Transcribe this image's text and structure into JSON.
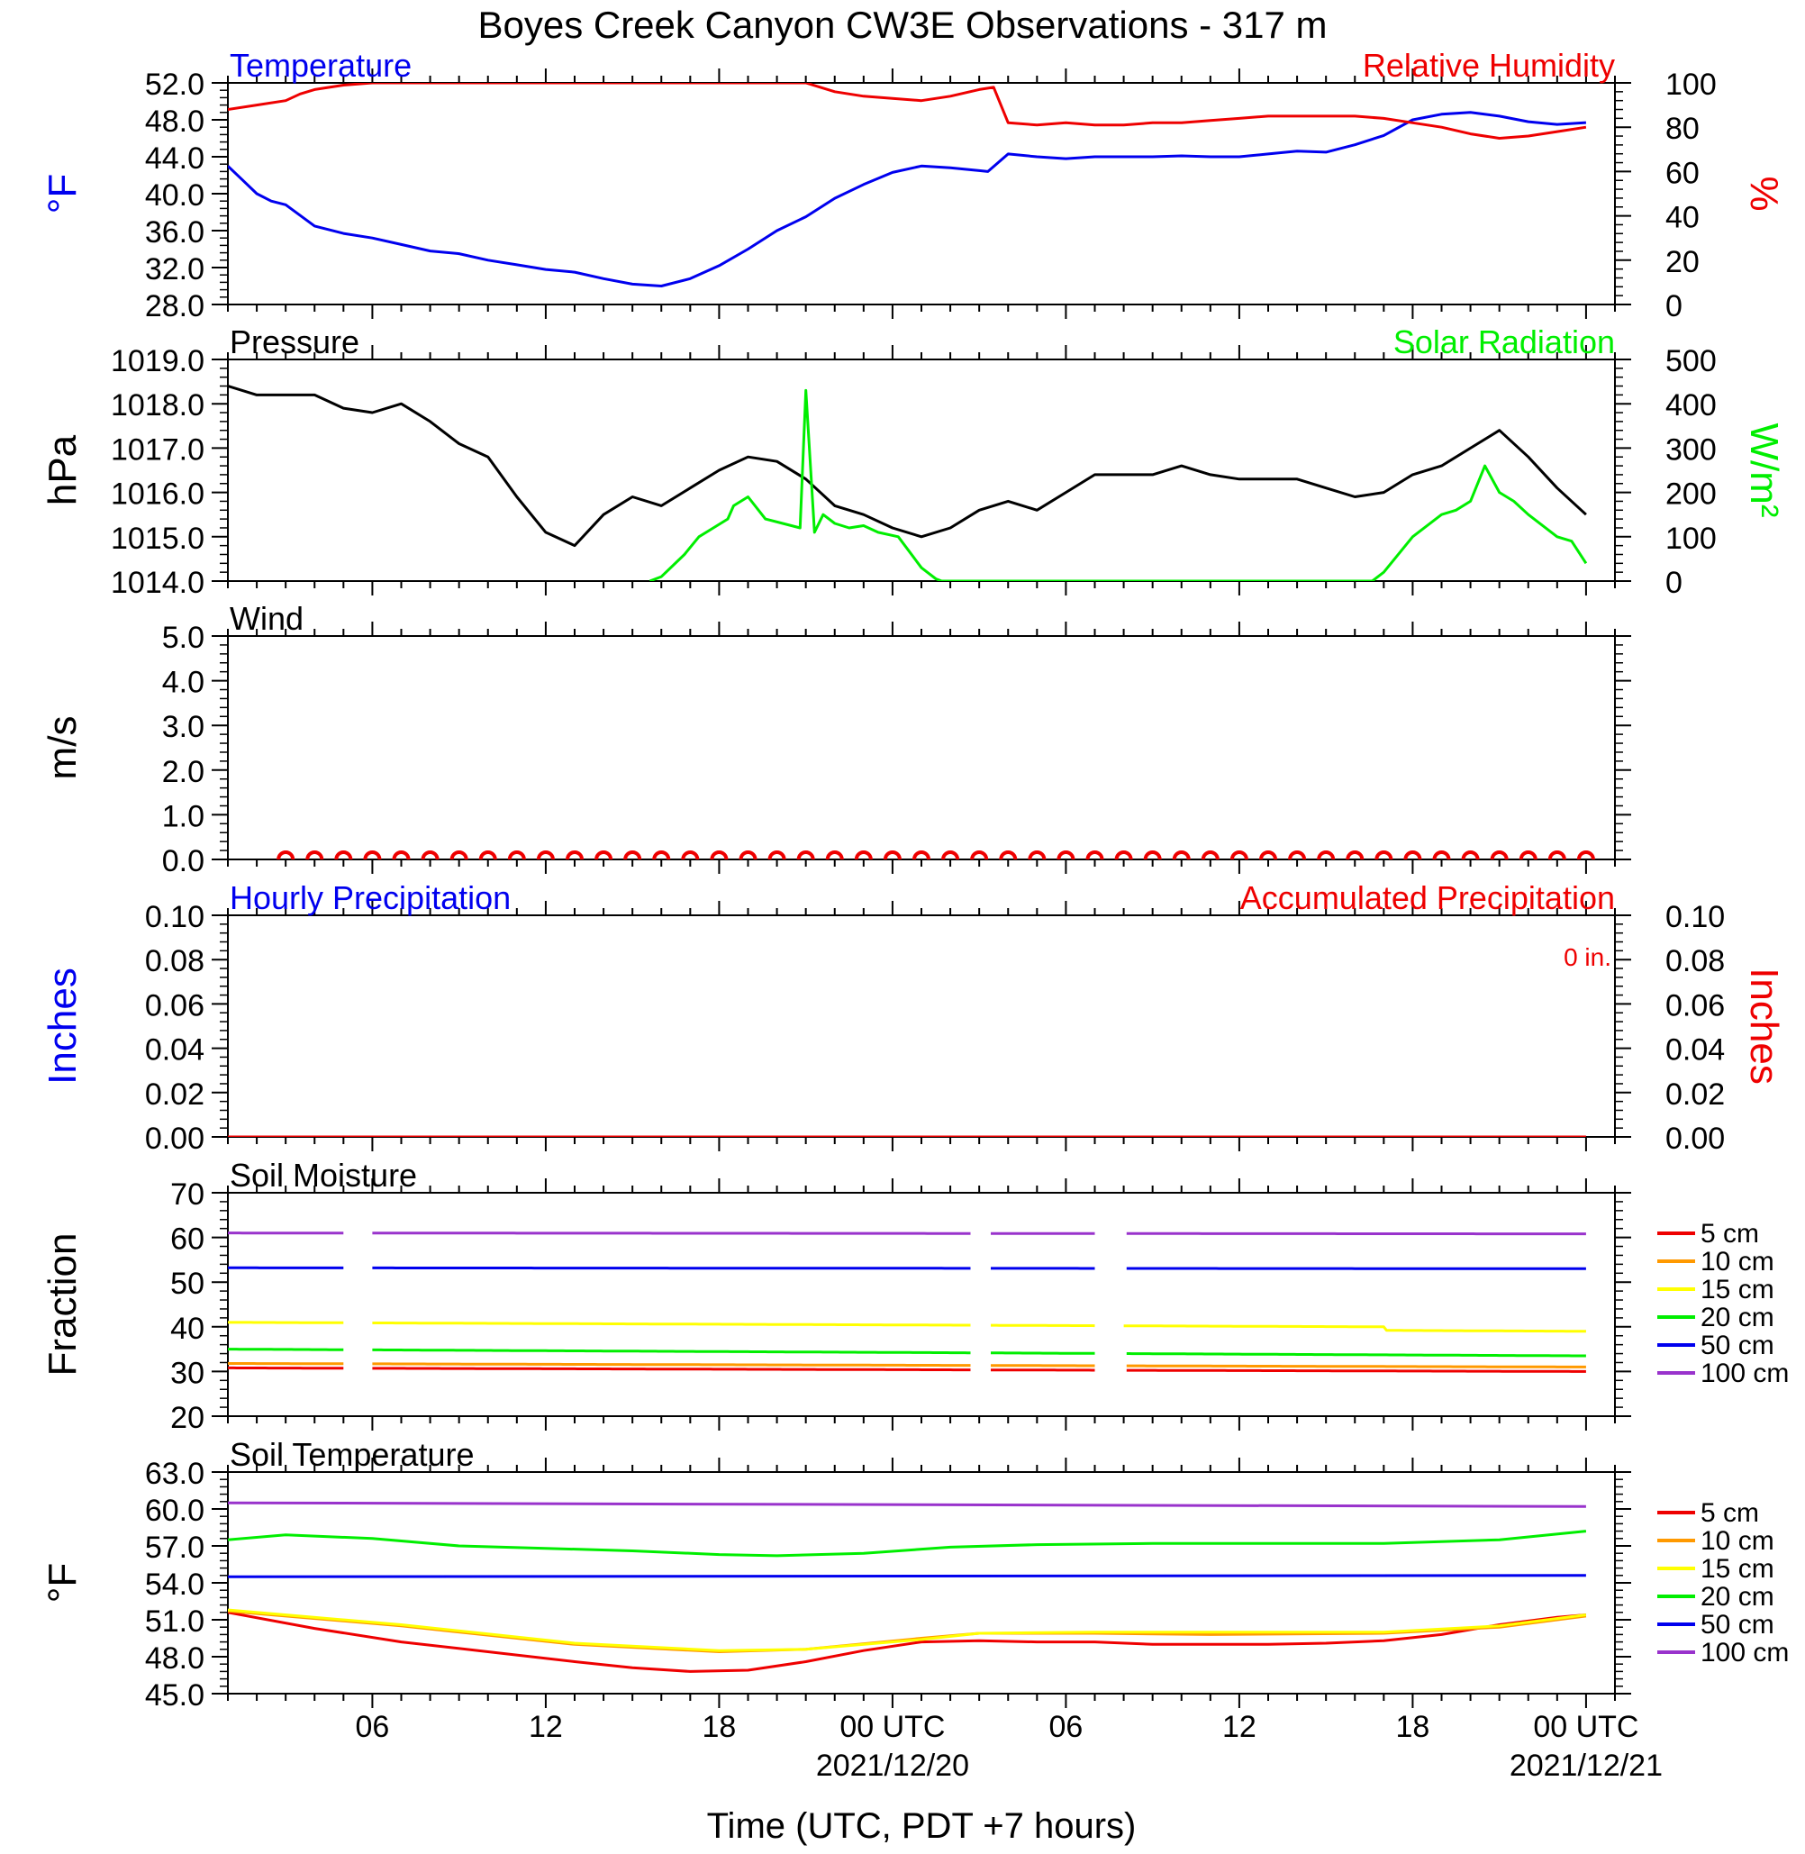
{
  "title": "Boyes Creek Canyon CW3E Observations - 317 m",
  "x_axis": {
    "label": "Time (UTC, PDT +7 hours)",
    "hours_range": [
      0,
      48
    ],
    "tick_labels": [
      {
        "hour": 5,
        "text": "06"
      },
      {
        "hour": 11,
        "text": "12"
      },
      {
        "hour": 17,
        "text": "18"
      },
      {
        "hour": 23,
        "text": "00 UTC",
        "date": "2021/12/20"
      },
      {
        "hour": 29,
        "text": "06"
      },
      {
        "hour": 35,
        "text": "12"
      },
      {
        "hour": 41,
        "text": "18"
      },
      {
        "hour": 47,
        "text": "00 UTC",
        "date": "2021/12/21"
      }
    ]
  },
  "chart_data": [
    {
      "type": "line",
      "id": "temp_rh",
      "left_title": "Temperature",
      "right_title": "Relative Humidity",
      "ylabel_left": "°F",
      "ylabel_right": "%",
      "ylim_left": [
        28,
        52
      ],
      "ylim_right": [
        0,
        100
      ],
      "yticks_left": [
        "28.0",
        "32.0",
        "36.0",
        "40.0",
        "44.0",
        "48.0",
        "52.0"
      ],
      "yticks_right": [
        "0",
        "20",
        "40",
        "60",
        "80",
        "100"
      ],
      "series": [
        {
          "name": "Temperature",
          "axis": "left",
          "color": "#0000ee",
          "x": [
            0,
            0.5,
            1,
            1.5,
            2,
            3,
            4,
            5,
            6,
            7,
            8,
            9,
            10,
            11,
            12,
            13,
            14,
            15,
            16,
            17,
            18,
            19,
            20,
            21,
            22,
            23,
            24,
            25,
            26,
            26.3,
            27,
            28,
            29,
            30,
            31,
            32,
            33,
            34,
            35,
            36,
            37,
            38,
            39,
            40,
            41,
            42,
            43,
            44,
            45,
            46,
            47
          ],
          "y": [
            43,
            41.5,
            40,
            39.2,
            38.8,
            36.5,
            35.7,
            35.2,
            34.5,
            33.8,
            33.5,
            32.8,
            32.3,
            31.8,
            31.5,
            30.8,
            30.2,
            30,
            30.8,
            32.2,
            34,
            36,
            37.5,
            39.5,
            41,
            42.3,
            43,
            42.8,
            42.5,
            42.4,
            44.3,
            44,
            43.8,
            44,
            44,
            44,
            44.1,
            44,
            44,
            44.3,
            44.6,
            44.5,
            45.3,
            46.3,
            48,
            48.6,
            48.8,
            48.4,
            47.8,
            47.5,
            47.7
          ]
        },
        {
          "name": "Relative Humidity",
          "axis": "right",
          "color": "#ee0000",
          "x": [
            0,
            1,
            2,
            2.5,
            3,
            4,
            5,
            10,
            15,
            19,
            20,
            21,
            22,
            23,
            24,
            25,
            26,
            26.5,
            27,
            28,
            29,
            30,
            31,
            32,
            33,
            34,
            35,
            36,
            37,
            38,
            39,
            40,
            41,
            42,
            43,
            44,
            45,
            46,
            47
          ],
          "y": [
            88,
            90,
            92,
            95,
            97,
            99,
            100,
            100,
            100,
            100,
            100,
            96,
            94,
            93,
            92,
            94,
            97,
            98,
            82,
            81,
            82,
            81,
            81,
            82,
            82,
            83,
            84,
            85,
            85,
            85,
            85,
            84,
            82,
            80,
            77,
            75,
            76,
            78,
            80
          ]
        }
      ]
    },
    {
      "type": "line",
      "id": "pressure_solar",
      "left_title": "Pressure",
      "right_title": "Solar Radiation",
      "ylabel_left": "hPa",
      "ylabel_right": "W/m²",
      "ylim_left": [
        1014,
        1019
      ],
      "ylim_right": [
        0,
        500
      ],
      "yticks_left": [
        "1014.0",
        "1015.0",
        "1016.0",
        "1017.0",
        "1018.0",
        "1019.0"
      ],
      "yticks_right": [
        "0",
        "100",
        "200",
        "300",
        "400",
        "500"
      ],
      "series": [
        {
          "name": "Pressure",
          "axis": "left",
          "color": "#000000",
          "x": [
            0,
            1,
            2,
            3,
            4,
            5,
            6,
            7,
            8,
            9,
            10,
            11,
            12,
            13,
            14,
            15,
            16,
            17,
            18,
            19,
            20,
            21,
            22,
            23,
            24,
            25,
            26,
            27,
            28,
            29,
            30,
            31,
            32,
            33,
            34,
            35,
            36,
            37,
            38,
            39,
            40,
            41,
            42,
            43,
            44,
            45,
            46,
            47
          ],
          "y": [
            1018.4,
            1018.2,
            1018.2,
            1018.2,
            1017.9,
            1017.8,
            1018,
            1017.6,
            1017.1,
            1016.8,
            1015.9,
            1015.1,
            1014.8,
            1015.5,
            1015.9,
            1015.7,
            1016.1,
            1016.5,
            1016.8,
            1016.7,
            1016.3,
            1015.7,
            1015.5,
            1015.2,
            1015,
            1015.2,
            1015.6,
            1015.8,
            1015.6,
            1016,
            1016.4,
            1016.4,
            1016.4,
            1016.6,
            1016.4,
            1016.3,
            1016.3,
            1016.3,
            1016.1,
            1015.9,
            1016,
            1016.4,
            1016.6,
            1017,
            1017.4,
            1016.8,
            1016.1,
            1015.5
          ]
        },
        {
          "name": "Solar Radiation",
          "axis": "right",
          "color": "#00ee00",
          "x": [
            14.6,
            15,
            15.8,
            16.3,
            16.8,
            17.3,
            17.5,
            18,
            18.6,
            19.2,
            19.8,
            20,
            20.3,
            20.6,
            21,
            21.5,
            22,
            22.5,
            23.2,
            24,
            24.5,
            24.7,
            39.6,
            40,
            41,
            42,
            42.5,
            43,
            43.5,
            44,
            44.5,
            45,
            46,
            46.5,
            47
          ],
          "y": [
            0,
            10,
            60,
            100,
            120,
            140,
            170,
            190,
            140,
            130,
            120,
            430,
            110,
            150,
            130,
            120,
            125,
            110,
            100,
            30,
            5,
            0,
            0,
            20,
            100,
            150,
            160,
            180,
            260,
            200,
            180,
            150,
            100,
            90,
            40
          ]
        }
      ]
    },
    {
      "type": "scatter",
      "id": "wind",
      "left_title": "Wind",
      "ylabel_left": "m/s",
      "ylim_left": [
        0,
        5
      ],
      "yticks_left": [
        "0.0",
        "1.0",
        "2.0",
        "3.0",
        "4.0",
        "5.0"
      ],
      "series": [
        {
          "name": "Wind",
          "axis": "left",
          "color": "#ee0000",
          "x": [
            2,
            3,
            4,
            5,
            6,
            7,
            8,
            9,
            10,
            11,
            12,
            13,
            14,
            15,
            16,
            17,
            18,
            19,
            20,
            21,
            22,
            23,
            24,
            25,
            26,
            27,
            28,
            29,
            30,
            31,
            32,
            33,
            34,
            35,
            36,
            37,
            38,
            39,
            40,
            41,
            42,
            43,
            44,
            45,
            46,
            47
          ],
          "y": [
            0,
            0,
            0,
            0,
            0,
            0,
            0,
            0,
            0,
            0,
            0,
            0,
            0,
            0,
            0,
            0,
            0,
            0,
            0,
            0,
            0,
            0,
            0,
            0,
            0,
            0,
            0,
            0,
            0,
            0,
            0,
            0,
            0,
            0,
            0,
            0,
            0,
            0,
            0,
            0,
            0,
            0,
            0,
            0,
            0,
            0
          ]
        }
      ]
    },
    {
      "type": "line",
      "id": "precip",
      "left_title": "Hourly Precipitation",
      "right_title": "Accumulated Precipitation",
      "annotation": "0 in.",
      "ylabel_left": "Inches",
      "ylabel_right": "Inches",
      "ylim_left": [
        0,
        0.1
      ],
      "ylim_right": [
        0,
        0.1
      ],
      "yticks_left": [
        "0.00",
        "0.02",
        "0.04",
        "0.06",
        "0.08",
        "0.10"
      ],
      "yticks_right": [
        "0.00",
        "0.02",
        "0.04",
        "0.06",
        "0.08",
        "0.10"
      ],
      "series": [
        {
          "name": "Accumulated Precipitation",
          "axis": "left",
          "color": "#ee0000",
          "x": [
            0,
            47
          ],
          "y": [
            0,
            0
          ]
        }
      ]
    },
    {
      "type": "line",
      "id": "soil_moisture",
      "left_title": "Soil Moisture",
      "ylabel_left": "Fraction",
      "ylim_left": [
        20,
        70
      ],
      "yticks_left": [
        "20",
        "30",
        "40",
        "50",
        "60",
        "70"
      ],
      "gaps": [
        [
          4,
          5
        ],
        [
          25.7,
          26.3
        ],
        [
          30,
          31
        ]
      ],
      "legend": [
        "5 cm",
        "10 cm",
        "15 cm",
        "20 cm",
        "50 cm",
        "100 cm"
      ],
      "series": [
        {
          "name": "5 cm",
          "axis": "left",
          "color": "#ee0000",
          "x": [
            0,
            47
          ],
          "y": [
            30.8,
            30
          ]
        },
        {
          "name": "10 cm",
          "axis": "left",
          "color": "#ff9900",
          "x": [
            0,
            47
          ],
          "y": [
            31.8,
            31
          ]
        },
        {
          "name": "15 cm",
          "axis": "left",
          "color": "#ffff00",
          "x": [
            0,
            40,
            40.1,
            47
          ],
          "y": [
            41,
            40,
            39.2,
            39
          ]
        },
        {
          "name": "20 cm",
          "axis": "left",
          "color": "#00ee00",
          "x": [
            0,
            47
          ],
          "y": [
            35,
            33.5
          ]
        },
        {
          "name": "50 cm",
          "axis": "left",
          "color": "#0000ee",
          "x": [
            0,
            47
          ],
          "y": [
            53.2,
            53
          ]
        },
        {
          "name": "100 cm",
          "axis": "left",
          "color": "#9933cc",
          "x": [
            0,
            47
          ],
          "y": [
            61,
            60.8
          ]
        }
      ]
    },
    {
      "type": "line",
      "id": "soil_temperature",
      "left_title": "Soil Temperature",
      "ylabel_left": "°F",
      "ylim_left": [
        45,
        63
      ],
      "yticks_left": [
        "45.0",
        "48.0",
        "51.0",
        "54.0",
        "57.0",
        "60.0",
        "63.0"
      ],
      "legend": [
        "5 cm",
        "10 cm",
        "15 cm",
        "20 cm",
        "50 cm",
        "100 cm"
      ],
      "series": [
        {
          "name": "5 cm",
          "axis": "left",
          "color": "#ee0000",
          "x": [
            0,
            3,
            6,
            9,
            12,
            14,
            16,
            18,
            20,
            22,
            24,
            26,
            28,
            30,
            32,
            34,
            36,
            38,
            40,
            42,
            44,
            46,
            47
          ],
          "y": [
            51.6,
            50.3,
            49.2,
            48.4,
            47.6,
            47.1,
            46.8,
            46.9,
            47.6,
            48.5,
            49.2,
            49.3,
            49.2,
            49.2,
            49,
            49,
            49,
            49.1,
            49.3,
            49.8,
            50.6,
            51.2,
            51.4
          ]
        },
        {
          "name": "10 cm",
          "axis": "left",
          "color": "#ff9900",
          "x": [
            0,
            6,
            12,
            17,
            20,
            24,
            26,
            30,
            34,
            40,
            44,
            47
          ],
          "y": [
            51.7,
            50.5,
            49,
            48.4,
            48.6,
            49.5,
            49.9,
            49.9,
            49.8,
            49.9,
            50.4,
            51.3
          ]
        },
        {
          "name": "15 cm",
          "axis": "left",
          "color": "#ffff00",
          "x": [
            0,
            6,
            12,
            17,
            20,
            24,
            26,
            30,
            34,
            40,
            44,
            47
          ],
          "y": [
            51.8,
            50.6,
            49.1,
            48.5,
            48.6,
            49.4,
            49.9,
            50,
            50,
            50,
            50.5,
            51.4
          ]
        },
        {
          "name": "20 cm",
          "axis": "left",
          "color": "#00ee00",
          "x": [
            0,
            2,
            5,
            8,
            11,
            14,
            17,
            19,
            22,
            25,
            28,
            32,
            36,
            40,
            44,
            47
          ],
          "y": [
            57.5,
            57.9,
            57.6,
            57,
            56.8,
            56.6,
            56.3,
            56.2,
            56.4,
            56.9,
            57.1,
            57.2,
            57.2,
            57.2,
            57.5,
            58.2
          ]
        },
        {
          "name": "50 cm",
          "axis": "left",
          "color": "#0000ee",
          "x": [
            0,
            47
          ],
          "y": [
            54.5,
            54.6
          ]
        },
        {
          "name": "100 cm",
          "axis": "left",
          "color": "#9933cc",
          "x": [
            0,
            47
          ],
          "y": [
            60.5,
            60.2
          ]
        }
      ]
    }
  ]
}
